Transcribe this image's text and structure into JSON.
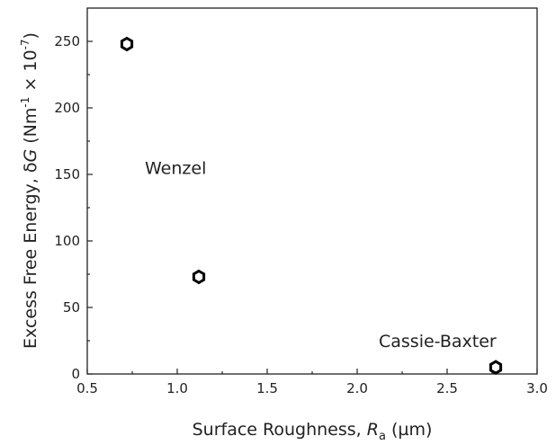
{
  "chart_data": {
    "type": "scatter",
    "xlabel": {
      "main": "Surface Roughness, ",
      "italic": "R",
      "sub": "a",
      "unit": " (µm)"
    },
    "ylabel": {
      "main": "Excess Free Energy, δ",
      "italic": "G",
      "unit_open": " (Nm",
      "sup1": "-1",
      "times": " × 10",
      "sup2": "-7",
      "unit_close": ")"
    },
    "xlim": [
      0.5,
      3.0
    ],
    "ylim": [
      0,
      275
    ],
    "x_ticks": [
      0.5,
      1.0,
      1.5,
      2.0,
      2.5,
      3.0
    ],
    "x_tick_labels": [
      "0.5",
      "1.0",
      "1.5",
      "2.0",
      "2.5",
      "3.0"
    ],
    "y_ticks": [
      0,
      50,
      100,
      150,
      200,
      250
    ],
    "y_tick_labels": [
      "0",
      "50",
      "100",
      "150",
      "200",
      "250"
    ],
    "points": [
      {
        "x": 0.72,
        "y": 248
      },
      {
        "x": 1.12,
        "y": 73
      },
      {
        "x": 2.77,
        "y": 5
      }
    ],
    "marker": "hexagon-open",
    "grid": false,
    "annotations": [
      {
        "text": "Wenzel",
        "x": 0.82,
        "y": 155
      },
      {
        "text": "Cassie-Baxter",
        "x": 2.12,
        "y": 25
      }
    ],
    "colors": {
      "marker": "#000000",
      "axis": "#222222"
    }
  }
}
